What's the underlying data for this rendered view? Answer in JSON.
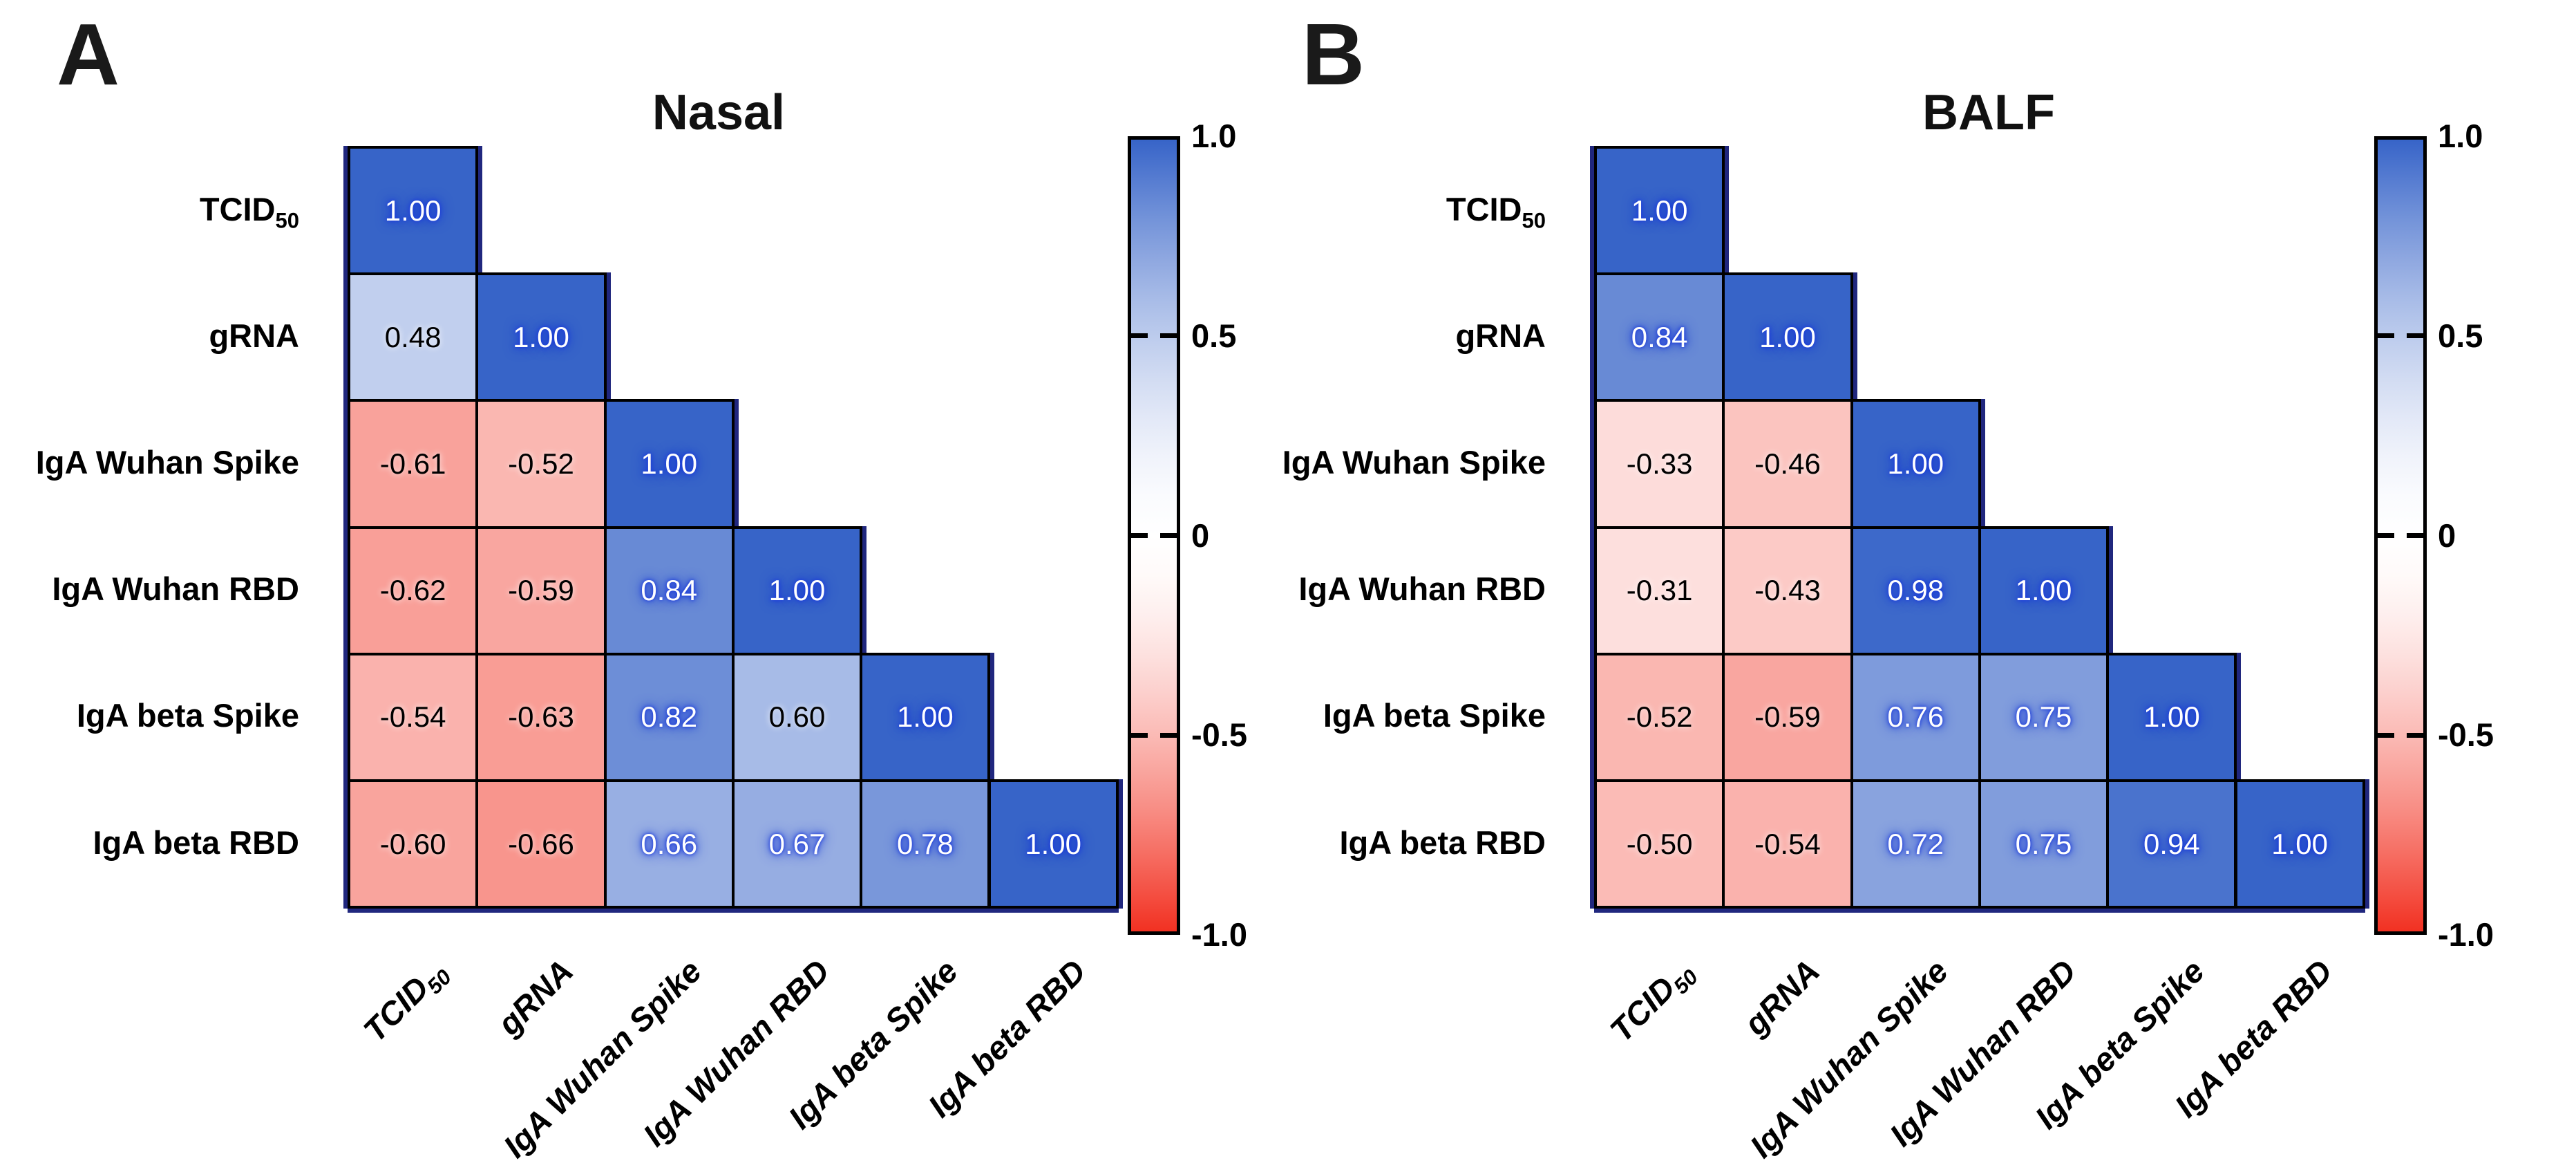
{
  "chart_data": {
    "type": "heatmap",
    "subtype": "lower-triangular correlation matrix",
    "panels": [
      {
        "panel_label": "A",
        "title": "Nasal",
        "variables": [
          {
            "text": "TCID",
            "sub": "50"
          },
          {
            "text": "gRNA"
          },
          {
            "text": "IgA Wuhan Spike"
          },
          {
            "text": "IgA Wuhan RBD"
          },
          {
            "text": "IgA beta Spike"
          },
          {
            "text": "IgA beta RBD"
          }
        ],
        "matrix": [
          [
            1.0
          ],
          [
            0.48,
            1.0
          ],
          [
            -0.61,
            -0.52,
            1.0
          ],
          [
            -0.62,
            -0.59,
            0.84,
            1.0
          ],
          [
            -0.54,
            -0.63,
            0.82,
            0.6,
            1.0
          ],
          [
            -0.6,
            -0.66,
            0.66,
            0.67,
            0.78,
            1.0
          ]
        ]
      },
      {
        "panel_label": "B",
        "title": "BALF",
        "variables": [
          {
            "text": "TCID",
            "sub": "50"
          },
          {
            "text": "gRNA"
          },
          {
            "text": "IgA Wuhan Spike"
          },
          {
            "text": "IgA Wuhan RBD"
          },
          {
            "text": "IgA beta Spike"
          },
          {
            "text": "IgA beta RBD"
          }
        ],
        "matrix": [
          [
            1.0
          ],
          [
            0.84,
            1.0
          ],
          [
            -0.33,
            -0.46,
            1.0
          ],
          [
            -0.31,
            -0.43,
            0.98,
            1.0
          ],
          [
            -0.52,
            -0.59,
            0.76,
            0.75,
            1.0
          ],
          [
            -0.5,
            -0.54,
            0.72,
            0.75,
            0.94,
            1.0
          ]
        ]
      }
    ],
    "colorbar": {
      "range": [
        -1,
        1
      ],
      "tick_values": [
        1,
        0.5,
        0,
        -0.5,
        -1
      ],
      "tick_labels": [
        "1.0",
        "0.5",
        "0",
        "-0.5",
        "-1.0"
      ],
      "max_color": "#3764C8",
      "mid_color": "#FFFFFF",
      "min_color": "#F23122",
      "outer_edge_color": "#20277E",
      "cell_border_color": "#000000"
    }
  }
}
